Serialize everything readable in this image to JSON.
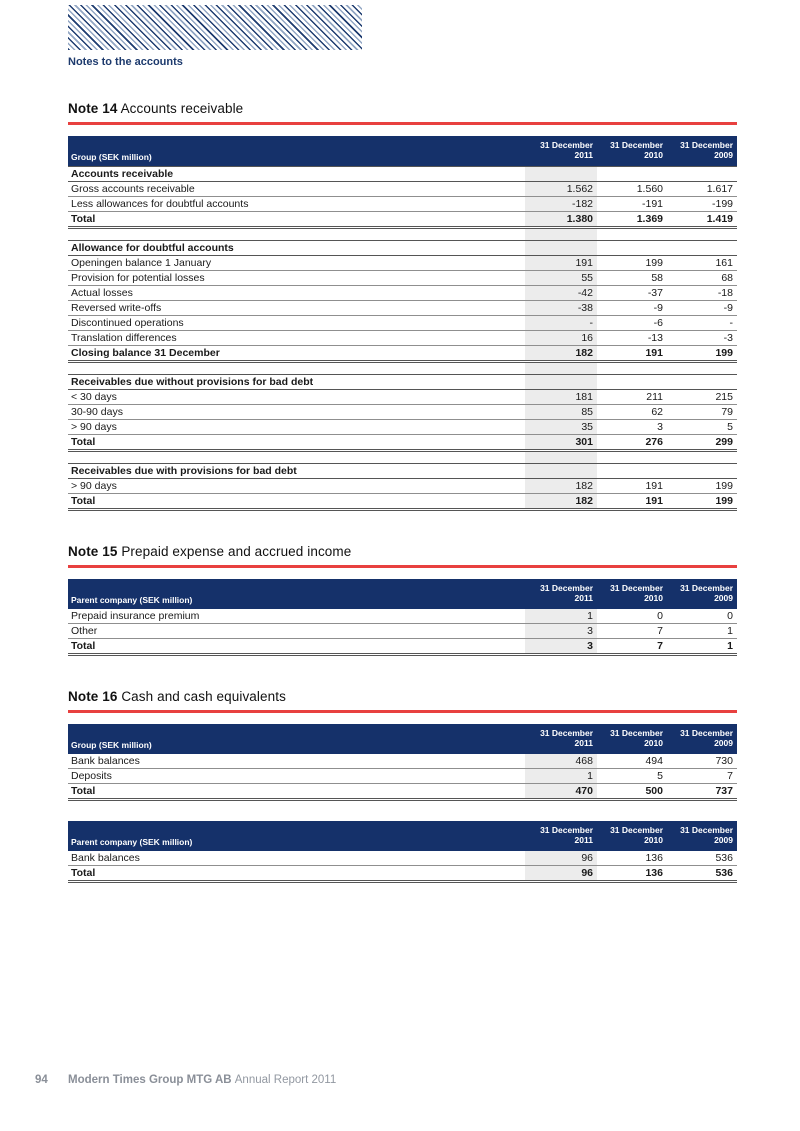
{
  "page": {
    "notes_label": "Notes to the accounts",
    "footer": {
      "page_number": "94",
      "company": "Modern Times Group MTG AB",
      "report": "Annual Report 2011"
    },
    "colors": {
      "header_navy": "#15316a",
      "stripe_dark": "#1e3c70",
      "stripe_light": "#93a7c4",
      "accent_red": "#e8403f",
      "column_highlight": "#ececec",
      "footer_gray": "#8a8f98"
    }
  },
  "notes": [
    {
      "id": "note-14",
      "title_prefix": "Note 14",
      "title": "Accounts receivable",
      "tables": [
        {
          "label_header": "Group (SEK million)",
          "col_headers": [
            {
              "line1": "31 December",
              "line2": "2011"
            },
            {
              "line1": "31 December",
              "line2": "2010"
            },
            {
              "line1": "31 December",
              "line2": "2009"
            }
          ],
          "rows": [
            {
              "type": "section",
              "label": "Accounts receivable"
            },
            {
              "type": "data",
              "label": "Gross accounts receivable",
              "values": [
                "1.562",
                "1.560",
                "1.617"
              ]
            },
            {
              "type": "data",
              "label": "Less allowances for doubtful accounts",
              "values": [
                "-182",
                "-191",
                "-199"
              ]
            },
            {
              "type": "total",
              "label": "Total",
              "values": [
                "1.380",
                "1.369",
                "1.419"
              ]
            },
            {
              "type": "spacer"
            },
            {
              "type": "section",
              "label": "Allowance for doubtful accounts"
            },
            {
              "type": "data",
              "label": "Openingen balance 1 January",
              "values": [
                "191",
                "199",
                "161"
              ]
            },
            {
              "type": "data",
              "label": "Provision for potential losses",
              "values": [
                "55",
                "58",
                "68"
              ]
            },
            {
              "type": "data",
              "label": "Actual losses",
              "values": [
                "-42",
                "-37",
                "-18"
              ]
            },
            {
              "type": "data",
              "label": "Reversed write-offs",
              "values": [
                "-38",
                "-9",
                "-9"
              ]
            },
            {
              "type": "data",
              "label": "Discontinued operations",
              "values": [
                "-",
                "-6",
                "-"
              ]
            },
            {
              "type": "data",
              "label": "Translation differences",
              "values": [
                "16",
                "-13",
                "-3"
              ]
            },
            {
              "type": "total",
              "label": "Closing balance 31 December",
              "values": [
                "182",
                "191",
                "199"
              ]
            },
            {
              "type": "spacer"
            },
            {
              "type": "section",
              "label": "Receivables due without provisions for bad debt"
            },
            {
              "type": "data",
              "label": "< 30 days",
              "values": [
                "181",
                "211",
                "215"
              ]
            },
            {
              "type": "data",
              "label": "30-90 days",
              "values": [
                "85",
                "62",
                "79"
              ]
            },
            {
              "type": "data",
              "label": "> 90 days",
              "values": [
                "35",
                "3",
                "5"
              ]
            },
            {
              "type": "total",
              "label": "Total",
              "values": [
                "301",
                "276",
                "299"
              ]
            },
            {
              "type": "spacer"
            },
            {
              "type": "section",
              "label": "Receivables due with provisions for bad debt"
            },
            {
              "type": "data",
              "label": "> 90 days",
              "values": [
                "182",
                "191",
                "199"
              ]
            },
            {
              "type": "total",
              "label": "Total",
              "values": [
                "182",
                "191",
                "199"
              ]
            }
          ]
        }
      ]
    },
    {
      "id": "note-15",
      "title_prefix": "Note 15",
      "title": "Prepaid expense and accrued income",
      "tables": [
        {
          "label_header": "Parent company (SEK million)",
          "col_headers": [
            {
              "line1": "31 December",
              "line2": "2011"
            },
            {
              "line1": "31 December",
              "line2": "2010"
            },
            {
              "line1": "31 December",
              "line2": "2009"
            }
          ],
          "rows": [
            {
              "type": "data",
              "label": "Prepaid insurance premium",
              "values": [
                "1",
                "0",
                "0"
              ]
            },
            {
              "type": "data",
              "label": "Other",
              "values": [
                "3",
                "7",
                "1"
              ]
            },
            {
              "type": "total",
              "label": "Total",
              "values": [
                "3",
                "7",
                "1"
              ]
            }
          ]
        }
      ]
    },
    {
      "id": "note-16",
      "title_prefix": "Note 16",
      "title": "Cash and cash equivalents",
      "tables": [
        {
          "label_header": "Group (SEK million)",
          "col_headers": [
            {
              "line1": "31 December",
              "line2": "2011"
            },
            {
              "line1": "31 December",
              "line2": "2010"
            },
            {
              "line1": "31 December",
              "line2": "2009"
            }
          ],
          "rows": [
            {
              "type": "data",
              "label": "Bank balances",
              "values": [
                "468",
                "494",
                "730"
              ]
            },
            {
              "type": "data",
              "label": "Deposits",
              "values": [
                "1",
                "5",
                "7"
              ]
            },
            {
              "type": "total",
              "label": "Total",
              "values": [
                "470",
                "500",
                "737"
              ]
            }
          ]
        },
        {
          "label_header": "Parent company (SEK million)",
          "col_headers": [
            {
              "line1": "31 December",
              "line2": "2011"
            },
            {
              "line1": "31 December",
              "line2": "2010"
            },
            {
              "line1": "31 December",
              "line2": "2009"
            }
          ],
          "rows": [
            {
              "type": "data",
              "label": "Bank balances",
              "values": [
                "96",
                "136",
                "536"
              ]
            },
            {
              "type": "total",
              "label": "Total",
              "values": [
                "96",
                "136",
                "536"
              ]
            }
          ]
        }
      ]
    }
  ]
}
